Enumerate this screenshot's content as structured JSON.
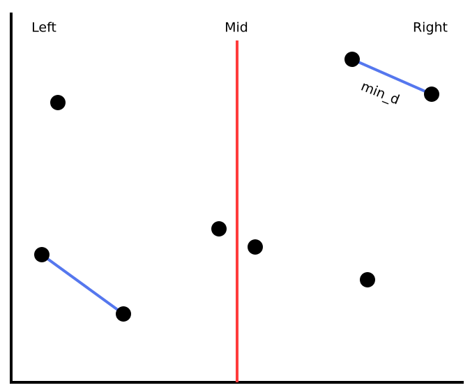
{
  "labels": {
    "left": "Left",
    "mid": "Mid",
    "right": "Right",
    "distance": "min_d"
  }
}
